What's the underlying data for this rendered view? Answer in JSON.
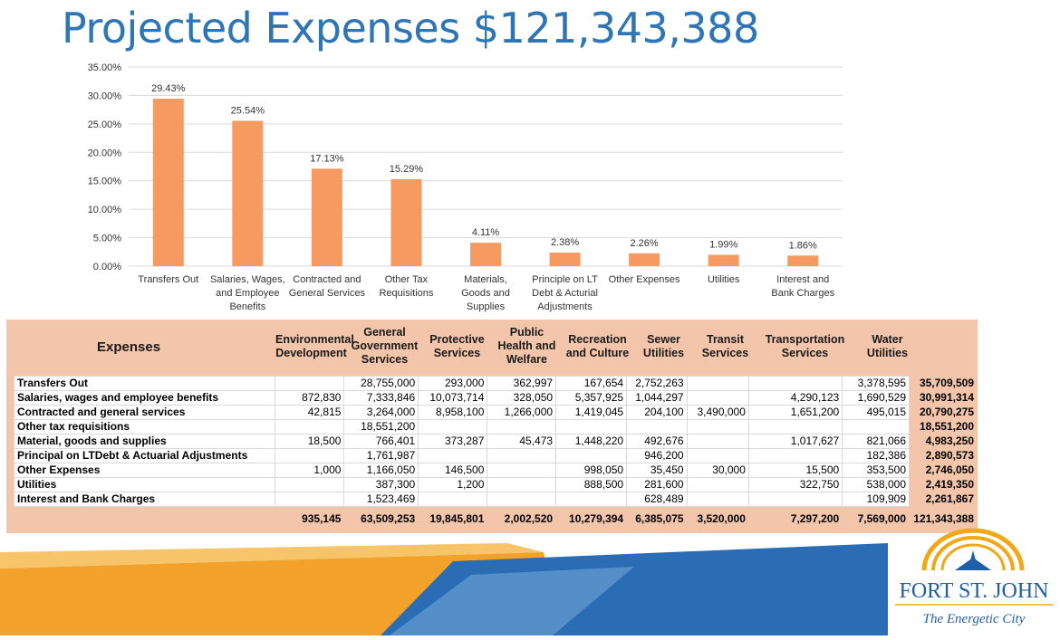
{
  "title": "Projected Expenses $121,343,388",
  "chart_data": {
    "type": "bar",
    "categories": [
      "Transfers Out",
      "Salaries, Wages, and Employee Benefits",
      "Contracted and General Services",
      "Other Tax Requisitions",
      "Materials, Goods and Supplies",
      "Principle on LT Debt & Acturial Adjustments",
      "Other Expenses",
      "Utilities",
      "Interest and Bank Charges"
    ],
    "category_lines": [
      [
        "Transfers Out"
      ],
      [
        "Salaries, Wages,",
        "and Employee",
        "Benefits"
      ],
      [
        "Contracted and",
        "General Services"
      ],
      [
        "Other Tax",
        "Requisitions"
      ],
      [
        "Materials,",
        "Goods and",
        "Supplies"
      ],
      [
        "Principle on LT",
        "Debt & Acturial",
        "Adjustments"
      ],
      [
        "Other Expenses"
      ],
      [
        "Utilities"
      ],
      [
        "Interest and",
        "Bank Charges"
      ]
    ],
    "values": [
      29.43,
      25.54,
      17.13,
      15.29,
      4.11,
      2.38,
      2.26,
      1.99,
      1.86
    ],
    "data_labels": [
      "29.43%",
      "25.54%",
      "17.13%",
      "15.29%",
      "4.11%",
      "2.38%",
      "2.26%",
      "1.99%",
      "1.86%"
    ],
    "ylim": [
      0,
      35
    ],
    "yticks": [
      "0.00%",
      "5.00%",
      "10.00%",
      "15.00%",
      "20.00%",
      "25.00%",
      "30.00%",
      "35.00%"
    ],
    "grid": true,
    "bar_color": "#f79a62",
    "xlabel": "",
    "ylabel": ""
  },
  "table": {
    "header_label": "Expenses",
    "columns": [
      [
        "Environmental",
        "Development"
      ],
      [
        "General",
        "Government",
        "Services"
      ],
      [
        "Protective",
        "Services"
      ],
      [
        "Public",
        "Health and",
        "Welfare"
      ],
      [
        "Recreation",
        "and Culture"
      ],
      [
        "Sewer",
        "Utilities"
      ],
      [
        "Transit",
        "Services"
      ],
      [
        "Transportation",
        "Services"
      ],
      [
        "Water",
        "Utilities"
      ]
    ],
    "rows": [
      {
        "label": "Transfers Out",
        "cells": [
          "",
          "28,755,000",
          "293,000",
          "362,997",
          "167,654",
          "2,752,263",
          "",
          "",
          "3,378,595"
        ],
        "total": "35,709,509"
      },
      {
        "label": "Salaries, wages and employee benefits",
        "cells": [
          "872,830",
          "7,333,846",
          "10,073,714",
          "328,050",
          "5,357,925",
          "1,044,297",
          "",
          "4,290,123",
          "1,690,529"
        ],
        "total": "30,991,314"
      },
      {
        "label": "Contracted and general services",
        "cells": [
          "42,815",
          "3,264,000",
          "8,958,100",
          "1,266,000",
          "1,419,045",
          "204,100",
          "3,490,000",
          "1,651,200",
          "495,015"
        ],
        "total": "20,790,275"
      },
      {
        "label": "Other tax requisitions",
        "cells": [
          "",
          "18,551,200",
          "",
          "",
          "",
          "",
          "",
          "",
          ""
        ],
        "total": "18,551,200"
      },
      {
        "label": "Material, goods and supplies",
        "cells": [
          "18,500",
          "766,401",
          "373,287",
          "45,473",
          "1,448,220",
          "492,676",
          "",
          "1,017,627",
          "821,066"
        ],
        "total": "4,983,250"
      },
      {
        "label": "Principal on LTDebt & Actuarial Adjustments",
        "cells": [
          "",
          "1,761,987",
          "",
          "",
          "",
          "946,200",
          "",
          "",
          "182,386"
        ],
        "total": "2,890,573"
      },
      {
        "label": "Other Expenses",
        "cells": [
          "1,000",
          "1,166,050",
          "146,500",
          "",
          "998,050",
          "35,450",
          "30,000",
          "15,500",
          "353,500"
        ],
        "total": "2,746,050"
      },
      {
        "label": "Utilities",
        "cells": [
          "",
          "387,300",
          "1,200",
          "",
          "888,500",
          "281,600",
          "",
          "322,750",
          "538,000"
        ],
        "total": "2,419,350"
      },
      {
        "label": "Interest and Bank Charges",
        "cells": [
          "",
          "1,523,469",
          "",
          "",
          "",
          "628,489",
          "",
          "",
          "109,909"
        ],
        "total": "2,261,867"
      }
    ],
    "totals": [
      "935,145",
      "63,509,253",
      "19,845,801",
      "2,002,520",
      "10,279,394",
      "6,385,075",
      "3,520,000",
      "7,297,200",
      "7,569,000"
    ],
    "grand_total": "121,343,388"
  },
  "logo": {
    "name": "FORT ST. JOHN",
    "tagline": "The Energetic City"
  },
  "colors": {
    "title": "#2e75b6",
    "table_bg": "#f3c5aa",
    "bar": "#f79a62",
    "wave_orange": "#f2a12a",
    "wave_blue": "#2a6db5",
    "logo_blue": "#1f5fa8",
    "logo_gold": "#f0a819"
  }
}
